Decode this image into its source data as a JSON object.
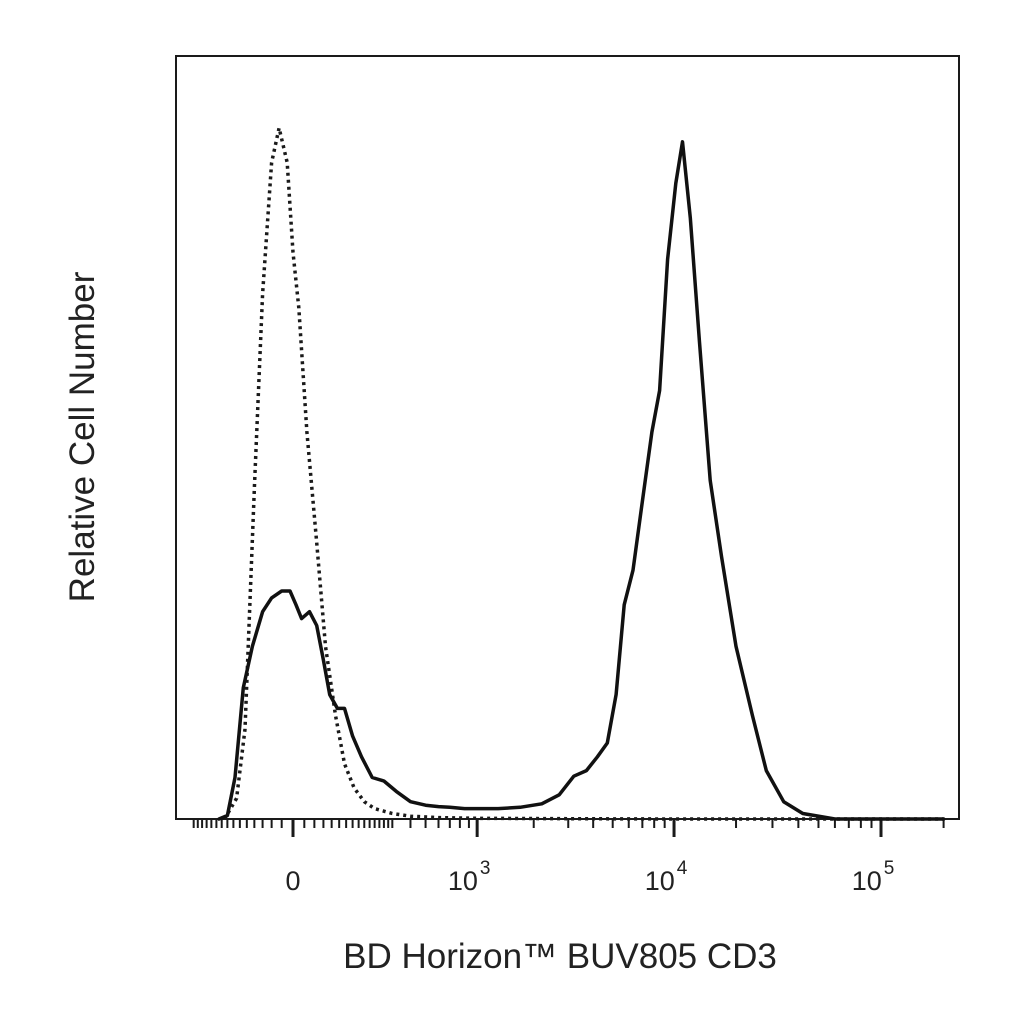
{
  "chart_data": {
    "type": "line",
    "title": "",
    "xlabel": "BD Horizon™ BUV805 CD3",
    "ylabel": "Relative Cell Number",
    "x_scale": "biexponential",
    "xlim": [
      -300,
      200000
    ],
    "ylim": [
      0,
      1
    ],
    "grid": false,
    "legend": "none",
    "x_ticks": [
      {
        "value": 0,
        "base": "0",
        "exp": ""
      },
      {
        "value": 1000,
        "base": "10",
        "exp": "3"
      },
      {
        "value": 10000,
        "base": "10",
        "exp": "4"
      },
      {
        "value": 100000,
        "base": "10",
        "exp": "5"
      }
    ],
    "series": [
      {
        "style": "dotted",
        "color": "#1a1a1a",
        "x": [
          -170,
          -130,
          -105,
          -80,
          -60,
          -40,
          -25,
          -10,
          0,
          10,
          25,
          45,
          65,
          90,
          115,
          145,
          180,
          220,
          300,
          400,
          600,
          1000,
          3000,
          10000,
          100000,
          200000
        ],
        "y": [
          0,
          0.03,
          0.13,
          0.48,
          0.76,
          0.95,
          1.0,
          0.95,
          0.82,
          0.74,
          0.56,
          0.4,
          0.25,
          0.15,
          0.08,
          0.045,
          0.025,
          0.015,
          0.008,
          0.004,
          0.002,
          0.001,
          0.0005,
          0,
          0,
          0
        ]
      },
      {
        "style": "solid",
        "color": "#111111",
        "x": [
          -190,
          -160,
          -135,
          -110,
          -85,
          -60,
          -40,
          -20,
          -5,
          5,
          15,
          30,
          45,
          60,
          75,
          95,
          115,
          140,
          170,
          210,
          260,
          320,
          400,
          500,
          600,
          700,
          850,
          1000,
          1300,
          1700,
          2200,
          2700,
          3200,
          3700,
          4200,
          4700,
          5200,
          5700,
          6300,
          7000,
          7800,
          8500,
          9300,
          10200,
          11000,
          12000,
          13300,
          15000,
          17000,
          20000,
          24000,
          28000,
          34000,
          42000,
          60000,
          100000,
          200000
        ],
        "y": [
          0,
          0.005,
          0.06,
          0.19,
          0.25,
          0.3,
          0.32,
          0.33,
          0.33,
          0.31,
          0.29,
          0.3,
          0.28,
          0.23,
          0.18,
          0.16,
          0.16,
          0.12,
          0.09,
          0.06,
          0.055,
          0.04,
          0.025,
          0.02,
          0.018,
          0.017,
          0.015,
          0.015,
          0.015,
          0.017,
          0.022,
          0.035,
          0.062,
          0.07,
          0.09,
          0.11,
          0.18,
          0.31,
          0.36,
          0.46,
          0.56,
          0.62,
          0.81,
          0.92,
          0.98,
          0.87,
          0.69,
          0.49,
          0.38,
          0.25,
          0.15,
          0.07,
          0.025,
          0.008,
          0,
          0,
          0
        ]
      }
    ]
  }
}
